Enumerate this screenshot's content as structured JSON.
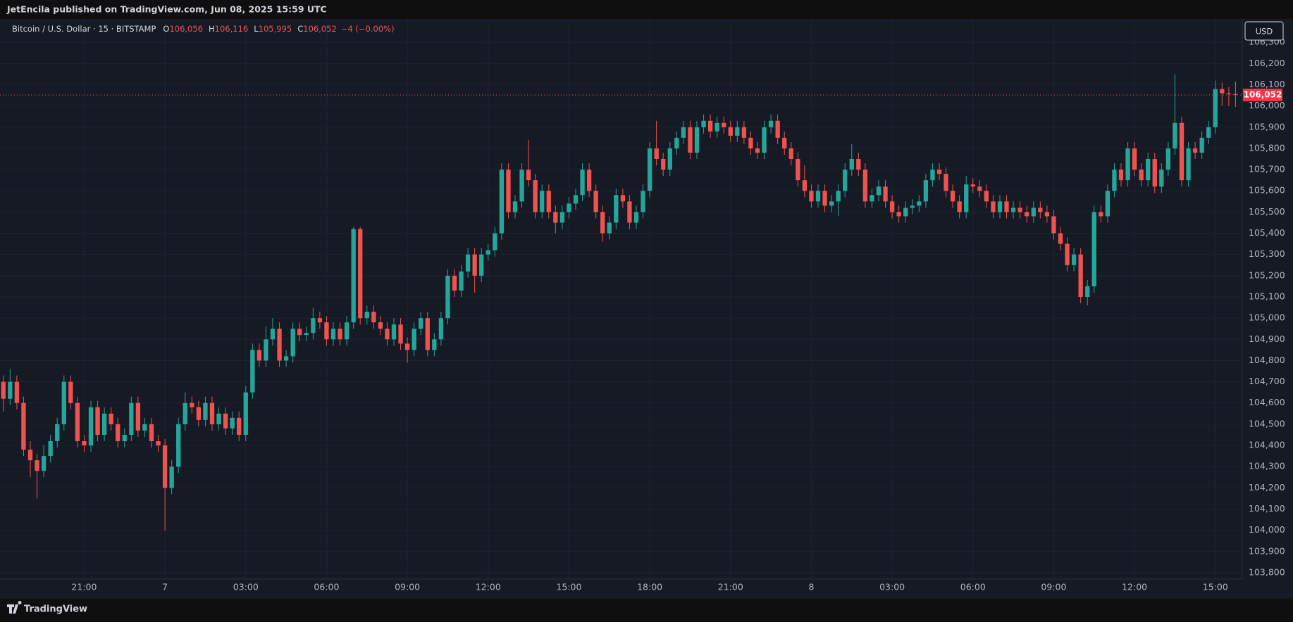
{
  "header": {
    "publisher": "JetEncila published on TradingView.com, Jun 08, 2025 15:59 UTC"
  },
  "footer": {
    "brand": "TradingView"
  },
  "chart_data": {
    "type": "candlestick",
    "legend": {
      "symbol": "Bitcoin / U.S. Dollar · 15 · BITSTAMP",
      "ohlc": [
        {
          "key": "O",
          "value": "106,056"
        },
        {
          "key": "H",
          "value": "106,116"
        },
        {
          "key": "L",
          "value": "105,995"
        },
        {
          "key": "C",
          "value": "106,052"
        }
      ],
      "change": "−4 (−0.00%)"
    },
    "currency": "USD",
    "last_price_label": "106,052",
    "up_color": "#26a69a",
    "down_color": "#ef5350",
    "grid": true,
    "xlim": [
      -0.5,
      184
    ],
    "xticks": [
      {
        "value": 12,
        "label": "21:00"
      },
      {
        "value": 24,
        "label": "7"
      },
      {
        "value": 36,
        "label": "03:00"
      },
      {
        "value": 48,
        "label": "06:00"
      },
      {
        "value": 60,
        "label": "09:00"
      },
      {
        "value": 72,
        "label": "12:00"
      },
      {
        "value": 84,
        "label": "15:00"
      },
      {
        "value": 96,
        "label": "18:00"
      },
      {
        "value": 108,
        "label": "21:00"
      },
      {
        "value": 120,
        "label": "8"
      },
      {
        "value": 132,
        "label": "03:00"
      },
      {
        "value": 144,
        "label": "06:00"
      },
      {
        "value": 156,
        "label": "09:00"
      },
      {
        "value": 168,
        "label": "12:00"
      },
      {
        "value": 180,
        "label": "15:00"
      }
    ],
    "ylim": [
      103770,
      106410
    ],
    "yticks": [
      {
        "value": 103800,
        "label": "103,800"
      },
      {
        "value": 103900,
        "label": "103,900"
      },
      {
        "value": 104000,
        "label": "104,000"
      },
      {
        "value": 104100,
        "label": "104,100"
      },
      {
        "value": 104200,
        "label": "104,200"
      },
      {
        "value": 104300,
        "label": "104,300"
      },
      {
        "value": 104400,
        "label": "104,400"
      },
      {
        "value": 104500,
        "label": "104,500"
      },
      {
        "value": 104600,
        "label": "104,600"
      },
      {
        "value": 104700,
        "label": "104,700"
      },
      {
        "value": 104800,
        "label": "104,800"
      },
      {
        "value": 104900,
        "label": "104,900"
      },
      {
        "value": 105000,
        "label": "105,000"
      },
      {
        "value": 105100,
        "label": "105,100"
      },
      {
        "value": 105200,
        "label": "105,200"
      },
      {
        "value": 105300,
        "label": "105,300"
      },
      {
        "value": 105400,
        "label": "105,400"
      },
      {
        "value": 105500,
        "label": "105,500"
      },
      {
        "value": 105600,
        "label": "105,600"
      },
      {
        "value": 105700,
        "label": "105,700"
      },
      {
        "value": 105800,
        "label": "105,800"
      },
      {
        "value": 105900,
        "label": "105,900"
      },
      {
        "value": 106000,
        "label": "106,000"
      },
      {
        "value": 106100,
        "label": "106,100"
      },
      {
        "value": 106200,
        "label": "106,200"
      },
      {
        "value": 106300,
        "label": "106,300"
      }
    ],
    "candles": [
      [
        104700,
        104730,
        104560,
        104620
      ],
      [
        104620,
        104760,
        104590,
        104700
      ],
      [
        104700,
        104730,
        104570,
        104600
      ],
      [
        104600,
        104630,
        104350,
        104380
      ],
      [
        104380,
        104420,
        104250,
        104330
      ],
      [
        104330,
        104360,
        104150,
        104280
      ],
      [
        104280,
        104400,
        104250,
        104350
      ],
      [
        104350,
        104450,
        104320,
        104420
      ],
      [
        104420,
        104530,
        104390,
        104500
      ],
      [
        104500,
        104730,
        104470,
        104700
      ],
      [
        104700,
        104730,
        104570,
        104600
      ],
      [
        104600,
        104630,
        104390,
        104420
      ],
      [
        104420,
        104450,
        104370,
        104400
      ],
      [
        104400,
        104610,
        104370,
        104580
      ],
      [
        104580,
        104610,
        104420,
        104450
      ],
      [
        104450,
        104580,
        104420,
        104550
      ],
      [
        104550,
        104580,
        104470,
        104500
      ],
      [
        104500,
        104530,
        104390,
        104420
      ],
      [
        104420,
        104480,
        104390,
        104450
      ],
      [
        104450,
        104630,
        104420,
        104600
      ],
      [
        104600,
        104630,
        104440,
        104470
      ],
      [
        104470,
        104530,
        104440,
        104500
      ],
      [
        104500,
        104530,
        104390,
        104420
      ],
      [
        104420,
        104450,
        104370,
        104400
      ],
      [
        104400,
        104430,
        104000,
        104200
      ],
      [
        104200,
        104330,
        104170,
        104300
      ],
      [
        104300,
        104530,
        104270,
        104500
      ],
      [
        104500,
        104650,
        104470,
        104600
      ],
      [
        104600,
        104630,
        104550,
        104580
      ],
      [
        104580,
        104610,
        104490,
        104520
      ],
      [
        104520,
        104630,
        104490,
        104600
      ],
      [
        104600,
        104630,
        104470,
        104500
      ],
      [
        104500,
        104580,
        104470,
        104550
      ],
      [
        104550,
        104580,
        104450,
        104480
      ],
      [
        104480,
        104560,
        104450,
        104530
      ],
      [
        104530,
        104560,
        104420,
        104450
      ],
      [
        104450,
        104680,
        104420,
        104650
      ],
      [
        104650,
        104880,
        104620,
        104850
      ],
      [
        104850,
        104880,
        104770,
        104800
      ],
      [
        104800,
        104960,
        104770,
        104900
      ],
      [
        104900,
        105000,
        104870,
        104950
      ],
      [
        104950,
        104980,
        104770,
        104800
      ],
      [
        104800,
        104850,
        104770,
        104820
      ],
      [
        104820,
        104980,
        104790,
        104950
      ],
      [
        104950,
        104980,
        104890,
        104920
      ],
      [
        104920,
        104960,
        104890,
        104930
      ],
      [
        104930,
        105050,
        104900,
        105000
      ],
      [
        105000,
        105030,
        104950,
        104980
      ],
      [
        104980,
        105010,
        104870,
        104900
      ],
      [
        104900,
        104980,
        104870,
        104950
      ],
      [
        104950,
        104980,
        104870,
        104900
      ],
      [
        104900,
        105010,
        104870,
        104980
      ],
      [
        104980,
        105430,
        104950,
        105420
      ],
      [
        105420,
        105430,
        104970,
        105000
      ],
      [
        105000,
        105060,
        104970,
        105030
      ],
      [
        105030,
        105060,
        104950,
        104980
      ],
      [
        104980,
        105010,
        104920,
        104950
      ],
      [
        104950,
        104980,
        104870,
        104900
      ],
      [
        104900,
        105000,
        104870,
        104970
      ],
      [
        104970,
        105000,
        104850,
        104880
      ],
      [
        104880,
        104910,
        104790,
        104850
      ],
      [
        104850,
        104980,
        104820,
        104950
      ],
      [
        104950,
        105030,
        104920,
        105000
      ],
      [
        105000,
        105030,
        104820,
        104850
      ],
      [
        104850,
        104930,
        104820,
        104900
      ],
      [
        104900,
        105030,
        104870,
        105000
      ],
      [
        105000,
        105230,
        104970,
        105200
      ],
      [
        105200,
        105230,
        105100,
        105130
      ],
      [
        105130,
        105250,
        105100,
        105220
      ],
      [
        105220,
        105330,
        105190,
        105300
      ],
      [
        105300,
        105330,
        105120,
        105200
      ],
      [
        105200,
        105330,
        105170,
        105300
      ],
      [
        105300,
        105350,
        105270,
        105320
      ],
      [
        105320,
        105430,
        105290,
        105400
      ],
      [
        105400,
        105730,
        105370,
        105700
      ],
      [
        105700,
        105730,
        105470,
        105500
      ],
      [
        105500,
        105580,
        105470,
        105550
      ],
      [
        105550,
        105730,
        105520,
        105700
      ],
      [
        105700,
        105840,
        105620,
        105650
      ],
      [
        105650,
        105680,
        105470,
        105500
      ],
      [
        105500,
        105630,
        105470,
        105600
      ],
      [
        105600,
        105630,
        105470,
        105500
      ],
      [
        105500,
        105530,
        105400,
        105450
      ],
      [
        105450,
        105530,
        105420,
        105500
      ],
      [
        105500,
        105570,
        105470,
        105540
      ],
      [
        105540,
        105610,
        105510,
        105580
      ],
      [
        105580,
        105730,
        105550,
        105700
      ],
      [
        105700,
        105730,
        105570,
        105600
      ],
      [
        105600,
        105630,
        105470,
        105500
      ],
      [
        105500,
        105530,
        105360,
        105400
      ],
      [
        105400,
        105480,
        105370,
        105450
      ],
      [
        105450,
        105610,
        105420,
        105580
      ],
      [
        105580,
        105610,
        105520,
        105550
      ],
      [
        105550,
        105580,
        105420,
        105450
      ],
      [
        105450,
        105530,
        105420,
        105500
      ],
      [
        105500,
        105630,
        105470,
        105600
      ],
      [
        105600,
        105830,
        105570,
        105800
      ],
      [
        105800,
        105930,
        105720,
        105750
      ],
      [
        105750,
        105780,
        105670,
        105700
      ],
      [
        105700,
        105830,
        105670,
        105800
      ],
      [
        105800,
        105880,
        105770,
        105850
      ],
      [
        105850,
        105930,
        105820,
        105900
      ],
      [
        105900,
        105930,
        105750,
        105780
      ],
      [
        105780,
        105930,
        105750,
        105900
      ],
      [
        105900,
        105960,
        105870,
        105930
      ],
      [
        105930,
        105960,
        105850,
        105880
      ],
      [
        105880,
        105950,
        105850,
        105920
      ],
      [
        105920,
        105950,
        105870,
        105900
      ],
      [
        105900,
        105930,
        105830,
        105860
      ],
      [
        105860,
        105930,
        105830,
        105900
      ],
      [
        105900,
        105930,
        105820,
        105850
      ],
      [
        105850,
        105880,
        105770,
        105800
      ],
      [
        105800,
        105830,
        105750,
        105780
      ],
      [
        105780,
        105930,
        105750,
        105900
      ],
      [
        105900,
        105960,
        105870,
        105930
      ],
      [
        105930,
        105960,
        105820,
        105850
      ],
      [
        105850,
        105880,
        105770,
        105800
      ],
      [
        105800,
        105830,
        105720,
        105750
      ],
      [
        105750,
        105780,
        105620,
        105650
      ],
      [
        105650,
        105720,
        105570,
        105600
      ],
      [
        105600,
        105630,
        105520,
        105550
      ],
      [
        105550,
        105630,
        105520,
        105600
      ],
      [
        105600,
        105630,
        105500,
        105530
      ],
      [
        105530,
        105580,
        105500,
        105550
      ],
      [
        105550,
        105630,
        105480,
        105600
      ],
      [
        105600,
        105730,
        105570,
        105700
      ],
      [
        105700,
        105820,
        105670,
        105750
      ],
      [
        105750,
        105780,
        105670,
        105700
      ],
      [
        105700,
        105730,
        105520,
        105550
      ],
      [
        105550,
        105610,
        105520,
        105580
      ],
      [
        105580,
        105650,
        105550,
        105620
      ],
      [
        105620,
        105650,
        105520,
        105550
      ],
      [
        105550,
        105580,
        105470,
        105500
      ],
      [
        105500,
        105530,
        105450,
        105480
      ],
      [
        105480,
        105550,
        105450,
        105520
      ],
      [
        105520,
        105560,
        105490,
        105530
      ],
      [
        105530,
        105580,
        105500,
        105550
      ],
      [
        105550,
        105680,
        105520,
        105650
      ],
      [
        105650,
        105730,
        105620,
        105700
      ],
      [
        105700,
        105730,
        105650,
        105680
      ],
      [
        105680,
        105710,
        105570,
        105600
      ],
      [
        105600,
        105630,
        105520,
        105550
      ],
      [
        105550,
        105580,
        105470,
        105500
      ],
      [
        105500,
        105670,
        105470,
        105630
      ],
      [
        105630,
        105660,
        105590,
        105620
      ],
      [
        105620,
        105650,
        105570,
        105600
      ],
      [
        105600,
        105630,
        105520,
        105550
      ],
      [
        105550,
        105580,
        105470,
        105500
      ],
      [
        105500,
        105580,
        105470,
        105550
      ],
      [
        105550,
        105580,
        105470,
        105500
      ],
      [
        105500,
        105550,
        105470,
        105520
      ],
      [
        105520,
        105550,
        105470,
        105500
      ],
      [
        105500,
        105530,
        105450,
        105480
      ],
      [
        105480,
        105550,
        105450,
        105520
      ],
      [
        105520,
        105550,
        105470,
        105500
      ],
      [
        105500,
        105530,
        105450,
        105480
      ],
      [
        105480,
        105510,
        105370,
        105400
      ],
      [
        105400,
        105430,
        105320,
        105350
      ],
      [
        105350,
        105380,
        105220,
        105250
      ],
      [
        105250,
        105330,
        105220,
        105300
      ],
      [
        105300,
        105330,
        105070,
        105100
      ],
      [
        105100,
        105180,
        105060,
        105150
      ],
      [
        105150,
        105530,
        105120,
        105500
      ],
      [
        105500,
        105530,
        105450,
        105480
      ],
      [
        105480,
        105630,
        105450,
        105600
      ],
      [
        105600,
        105730,
        105570,
        105700
      ],
      [
        105700,
        105730,
        105620,
        105650
      ],
      [
        105650,
        105830,
        105620,
        105800
      ],
      [
        105800,
        105830,
        105670,
        105700
      ],
      [
        105700,
        105730,
        105620,
        105650
      ],
      [
        105650,
        105780,
        105620,
        105750
      ],
      [
        105750,
        105780,
        105590,
        105620
      ],
      [
        105620,
        105730,
        105590,
        105700
      ],
      [
        105700,
        105830,
        105670,
        105800
      ],
      [
        105800,
        106150,
        105770,
        105920
      ],
      [
        105920,
        105950,
        105620,
        105650
      ],
      [
        105650,
        105830,
        105620,
        105800
      ],
      [
        105800,
        105830,
        105750,
        105780
      ],
      [
        105780,
        105880,
        105750,
        105850
      ],
      [
        105850,
        105930,
        105820,
        105900
      ],
      [
        105900,
        106120,
        105870,
        106080
      ],
      [
        106080,
        106110,
        106000,
        106060
      ],
      [
        106060,
        106090,
        106000,
        106056
      ],
      [
        106056,
        106116,
        105995,
        106052
      ]
    ]
  }
}
